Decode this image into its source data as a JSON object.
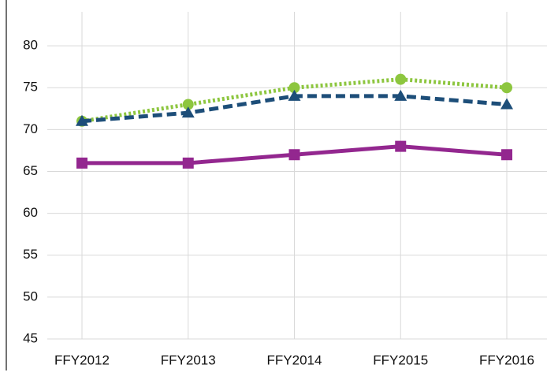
{
  "chart_data": {
    "type": "line",
    "categories": [
      "FFY2012",
      "FFY2013",
      "FFY2014",
      "FFY2015",
      "FFY2016"
    ],
    "series": [
      {
        "color": "#8dc63f",
        "dash": "dotted",
        "marker": "circle",
        "values": [
          71,
          73,
          75,
          76,
          75
        ]
      },
      {
        "color": "#1d4e79",
        "dash": "dashed",
        "marker": "triangle",
        "values": [
          71,
          72,
          74,
          74,
          73
        ]
      },
      {
        "color": "#93278f",
        "dash": "solid",
        "marker": "square",
        "values": [
          66,
          66,
          67,
          68,
          67
        ]
      }
    ],
    "ylim": [
      45,
      85
    ],
    "yticks": [
      45,
      50,
      55,
      60,
      65,
      70,
      75,
      80
    ],
    "grid": true
  }
}
